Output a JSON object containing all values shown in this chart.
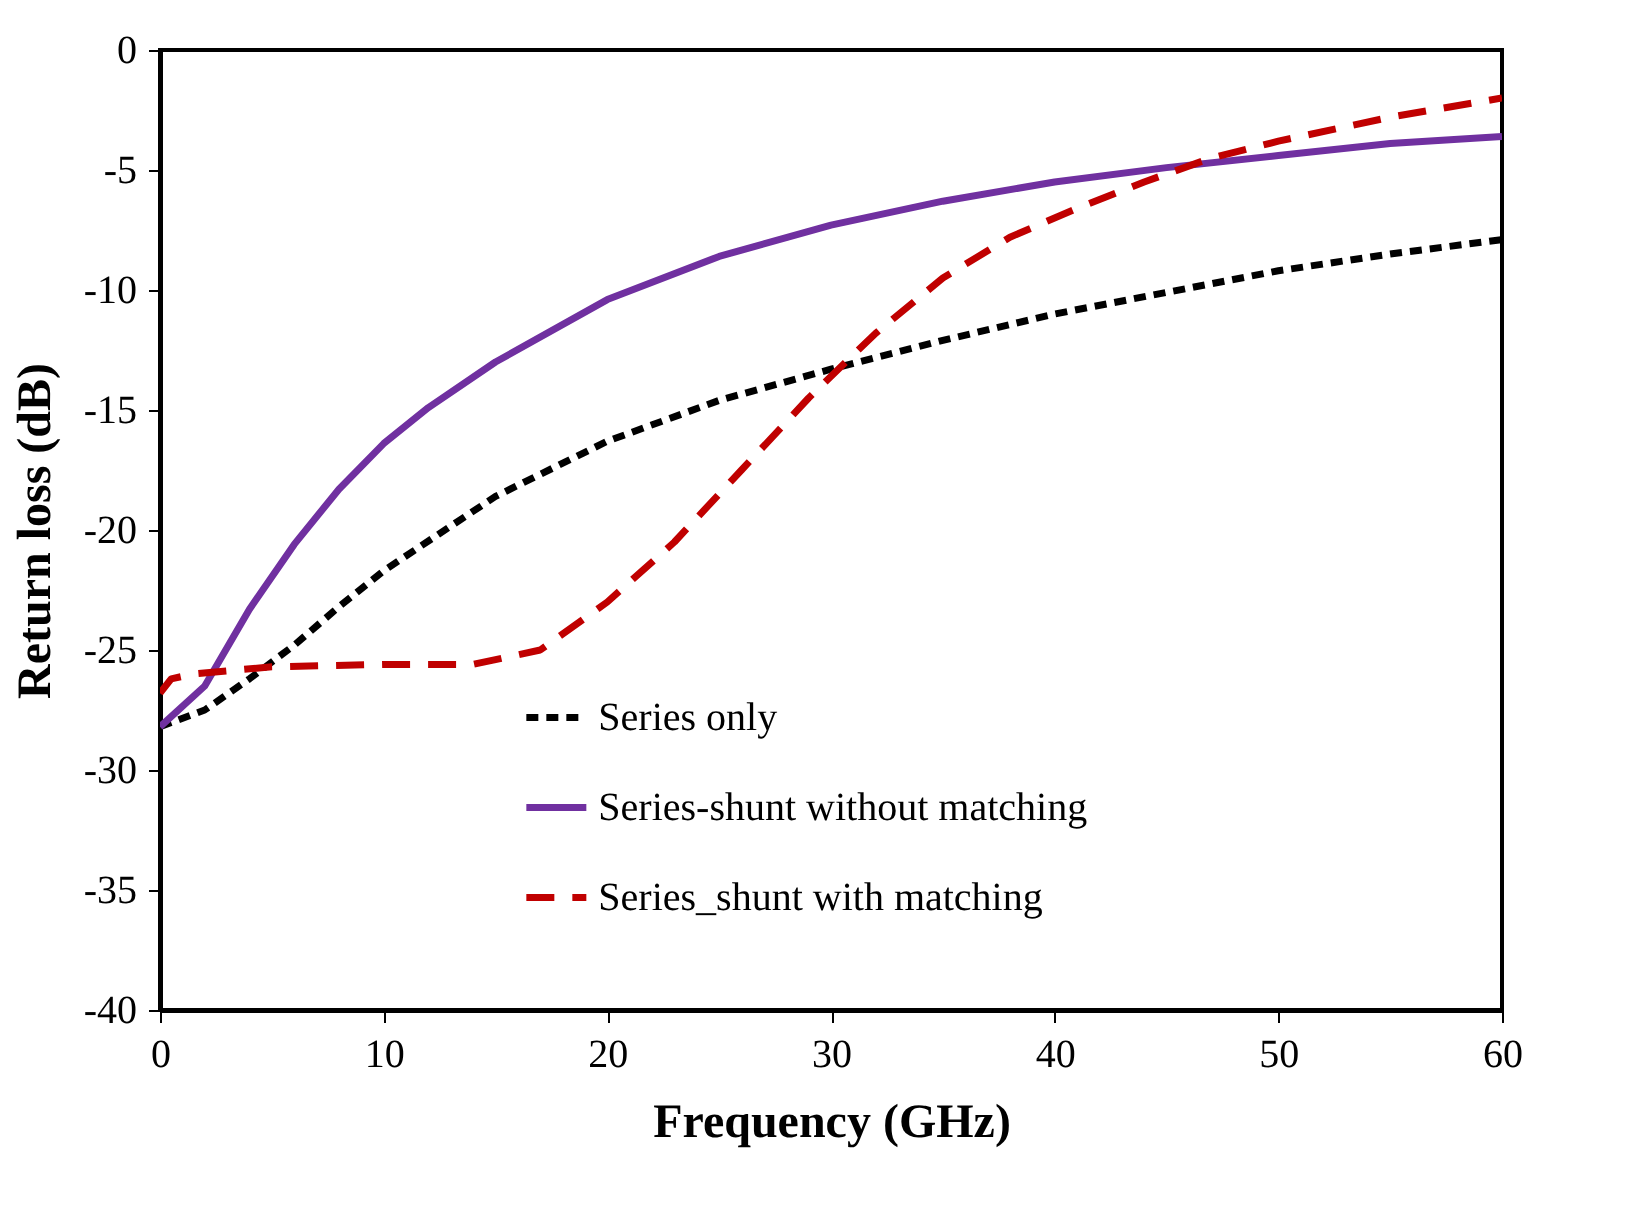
{
  "chart_data": {
    "type": "line",
    "xlabel": "Frequency (GHz)",
    "ylabel": "Return loss (dB)",
    "xlim": [
      0,
      60
    ],
    "xticks": [
      0,
      10,
      20,
      30,
      40,
      50,
      60
    ],
    "ylim": [
      -40,
      0
    ],
    "yticks": [
      -40,
      -35,
      -30,
      -25,
      -20,
      -15,
      -10,
      -5,
      0
    ],
    "grid": false,
    "legend": "bottom",
    "marker": "none",
    "series": [
      {
        "name": "Series only",
        "color": "#000000",
        "line_style": "dashed",
        "x": [
          0,
          2,
          4,
          6,
          8,
          10,
          15,
          20,
          25,
          30,
          35,
          40,
          45,
          50,
          55,
          60
        ],
        "values": [
          -28.2,
          -27.5,
          -26.2,
          -24.8,
          -23.2,
          -21.7,
          -18.6,
          -16.3,
          -14.6,
          -13.3,
          -12.1,
          -11.0,
          -10.1,
          -9.2,
          -8.5,
          -7.9
        ]
      },
      {
        "name": "Series-shunt without matching",
        "color": "#7030a0",
        "line_style": "solid",
        "x": [
          0,
          2,
          4,
          6,
          8,
          10,
          12,
          15,
          20,
          25,
          30,
          35,
          40,
          45,
          50,
          55,
          60
        ],
        "values": [
          -28.2,
          -26.5,
          -23.3,
          -20.6,
          -18.3,
          -16.4,
          -14.9,
          -13.0,
          -10.4,
          -8.6,
          -7.3,
          -6.3,
          -5.5,
          -4.9,
          -4.4,
          -3.9,
          -3.6
        ]
      },
      {
        "name": "Series_shunt with matching",
        "color": "#c00000",
        "line_style": "longdash",
        "x": [
          0,
          0.5,
          1.5,
          5,
          10,
          14,
          17,
          20,
          23,
          26,
          29,
          32,
          35,
          38,
          41,
          44,
          47,
          50,
          55,
          60
        ],
        "values": [
          -26.8,
          -26.2,
          -26.0,
          -25.7,
          -25.6,
          -25.6,
          -25.0,
          -23.0,
          -20.5,
          -17.5,
          -14.5,
          -11.8,
          -9.5,
          -7.8,
          -6.6,
          -5.5,
          -4.5,
          -3.8,
          -2.8,
          -2.0
        ]
      }
    ]
  }
}
